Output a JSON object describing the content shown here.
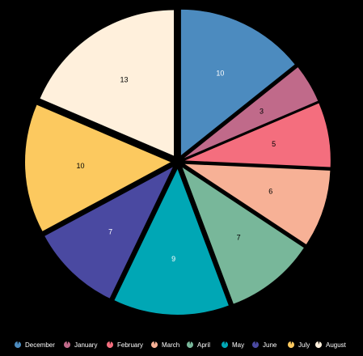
{
  "chart_data": {
    "type": "pie",
    "categories": [
      "December",
      "January",
      "February",
      "March",
      "April",
      "May",
      "June",
      "July",
      "August"
    ],
    "values": [
      10,
      3,
      5,
      6,
      7,
      9,
      7,
      10,
      13
    ],
    "colors": [
      "#4c8bbf",
      "#c06a8a",
      "#f46e7e",
      "#f7b196",
      "#78b79a",
      "#00a7b5",
      "#4a49a1",
      "#fcc95f",
      "#fff0dc"
    ],
    "label_colors": [
      "#ffffff",
      "#000000",
      "#000000",
      "#000000",
      "#000000",
      "#ffffff",
      "#ffffff",
      "#000000",
      "#000000"
    ],
    "exploded": true,
    "background": "#000000",
    "legend_position": "bottom",
    "title": "",
    "legend_labels": [
      "December",
      "January",
      "February",
      "March",
      "April",
      "May",
      "June",
      "July",
      "August"
    ]
  }
}
